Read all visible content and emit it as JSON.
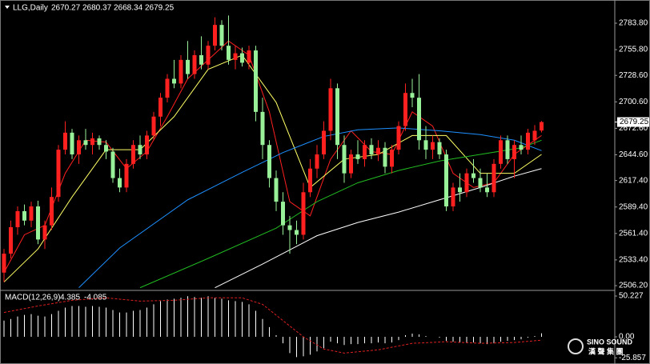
{
  "chart_data": [
    {
      "type": "candlestick",
      "title": "LLG,Daily",
      "open": [
        2520,
        2540,
        2568,
        2585,
        2575,
        2590,
        2555,
        2570,
        2600,
        2650,
        2668,
        2645,
        2660,
        2655,
        2662,
        2655,
        2648,
        2620,
        2610,
        2635,
        2655,
        2645,
        2665,
        2685,
        2705,
        2725,
        2720,
        2745,
        2730,
        2750,
        2740,
        2760,
        2782,
        2760,
        2745,
        2752,
        2742,
        2755,
        2690,
        2655,
        2620,
        2595,
        2570,
        2565,
        2560,
        2605,
        2630,
        2645,
        2670,
        2715,
        2655,
        2625,
        2645,
        2640,
        2655,
        2645,
        2652,
        2632,
        2650,
        2675,
        2710,
        2705,
        2660,
        2650,
        2658,
        2645,
        2590,
        2610,
        2605,
        2625,
        2620,
        2610,
        2605,
        2635,
        2660,
        2640,
        2655,
        2650,
        2660,
        2670.27
      ],
      "high": [
        2545,
        2575,
        2590,
        2592,
        2595,
        2596,
        2575,
        2610,
        2655,
        2680,
        2672,
        2665,
        2672,
        2668,
        2665,
        2660,
        2652,
        2630,
        2640,
        2660,
        2665,
        2670,
        2690,
        2710,
        2730,
        2745,
        2750,
        2765,
        2755,
        2770,
        2765,
        2790,
        2787,
        2792,
        2760,
        2758,
        2760,
        2760,
        2705,
        2660,
        2628,
        2605,
        2580,
        2575,
        2615,
        2640,
        2655,
        2680,
        2725,
        2720,
        2665,
        2650,
        2660,
        2660,
        2662,
        2660,
        2658,
        2655,
        2680,
        2720,
        2725,
        2730,
        2675,
        2665,
        2662,
        2650,
        2615,
        2625,
        2630,
        2640,
        2630,
        2625,
        2640,
        2665,
        2665,
        2660,
        2665,
        2672,
        2676,
        2680.37
      ],
      "low": [
        2510,
        2535,
        2560,
        2570,
        2568,
        2550,
        2545,
        2565,
        2595,
        2645,
        2640,
        2635,
        2650,
        2645,
        2650,
        2640,
        2615,
        2605,
        2605,
        2630,
        2640,
        2640,
        2660,
        2675,
        2700,
        2715,
        2715,
        2725,
        2725,
        2735,
        2735,
        2755,
        2755,
        2740,
        2735,
        2738,
        2735,
        2680,
        2640,
        2610,
        2585,
        2560,
        2540,
        2550,
        2555,
        2600,
        2620,
        2640,
        2660,
        2640,
        2615,
        2620,
        2635,
        2632,
        2640,
        2638,
        2625,
        2625,
        2645,
        2670,
        2695,
        2650,
        2640,
        2640,
        2640,
        2585,
        2585,
        2595,
        2600,
        2615,
        2605,
        2600,
        2600,
        2630,
        2635,
        2620,
        2645,
        2645,
        2655,
        2668.34
      ],
      "close": [
        2540,
        2568,
        2585,
        2575,
        2590,
        2555,
        2570,
        2600,
        2650,
        2668,
        2645,
        2660,
        2655,
        2662,
        2655,
        2648,
        2620,
        2610,
        2635,
        2655,
        2645,
        2665,
        2685,
        2705,
        2725,
        2720,
        2745,
        2730,
        2750,
        2740,
        2760,
        2782,
        2760,
        2745,
        2752,
        2742,
        2755,
        2690,
        2655,
        2620,
        2595,
        2570,
        2565,
        2560,
        2605,
        2630,
        2645,
        2670,
        2715,
        2655,
        2625,
        2645,
        2640,
        2655,
        2645,
        2652,
        2632,
        2650,
        2675,
        2710,
        2705,
        2660,
        2650,
        2658,
        2645,
        2590,
        2610,
        2605,
        2625,
        2620,
        2610,
        2605,
        2635,
        2660,
        2640,
        2655,
        2650,
        2668,
        2670,
        2679.25
      ],
      "up_color": "#ff2020",
      "down_color": "#98f098",
      "series": [
        {
          "color": "#ff2020",
          "x": [
            0,
            3,
            6,
            9,
            12,
            15,
            18,
            21,
            24,
            27,
            30,
            33,
            36,
            39,
            42,
            45,
            48,
            51,
            54,
            57,
            60,
            63,
            66,
            69,
            72,
            75,
            78,
            79
          ],
          "values": [
            2520,
            2560,
            2570,
            2625,
            2660,
            2658,
            2630,
            2648,
            2685,
            2725,
            2745,
            2765,
            2750,
            2690,
            2595,
            2580,
            2640,
            2670,
            2648,
            2645,
            2690,
            2675,
            2625,
            2610,
            2615,
            2645,
            2660,
            2665
          ]
        },
        {
          "color": "#ffff66",
          "x": [
            0,
            5,
            10,
            15,
            20,
            25,
            30,
            35,
            40,
            45,
            50,
            55,
            60,
            65,
            70,
            75,
            79
          ],
          "values": [
            2510,
            2545,
            2600,
            2650,
            2650,
            2685,
            2735,
            2750,
            2700,
            2610,
            2640,
            2645,
            2665,
            2665,
            2625,
            2625,
            2645
          ]
        },
        {
          "color": "#22bb22",
          "x": [
            20,
            30,
            40,
            46,
            52,
            58,
            64,
            70,
            76,
            79
          ],
          "values": [
            2504,
            2535,
            2567,
            2595,
            2615,
            2628,
            2638,
            2645,
            2652,
            2660
          ]
        },
        {
          "color": "#1e90ff",
          "x": [
            11,
            17,
            27,
            35,
            41,
            47,
            52,
            58,
            64,
            70,
            75,
            79
          ],
          "values": [
            2504,
            2546,
            2597,
            2626,
            2647,
            2664,
            2671,
            2673,
            2670,
            2666,
            2660,
            2649
          ]
        },
        {
          "color": "#ffffff",
          "x": [
            31,
            38,
            46,
            52,
            58,
            64,
            70,
            75,
            79
          ],
          "values": [
            2504,
            2529,
            2559,
            2573,
            2584,
            2597,
            2610,
            2622,
            2630
          ]
        }
      ],
      "ylim": [
        2502,
        2796.5
      ],
      "yticks": [
        {
          "value": 2783.8,
          "label": "2783.80"
        },
        {
          "value": 2755.8,
          "label": "2755.80"
        },
        {
          "value": 2728.6,
          "label": "2728.60"
        },
        {
          "value": 2700.6,
          "label": "2700.60"
        },
        {
          "value": 2672.6,
          "label": "2672.60"
        },
        {
          "value": 2644.6,
          "label": "2644.60"
        },
        {
          "value": 2617.4,
          "label": "2617.40"
        },
        {
          "value": 2589.4,
          "label": "2589.40"
        },
        {
          "value": 2561.4,
          "label": "2561.40"
        },
        {
          "value": 2533.4,
          "label": "2533.40"
        },
        {
          "value": 2506.2,
          "label": "2506.20"
        }
      ]
    },
    {
      "type": "macd",
      "title": "MACD(12,26,9)",
      "values": [
        20,
        22,
        25,
        27,
        28,
        26,
        25,
        28,
        32,
        36,
        38,
        38,
        37,
        38,
        37,
        36,
        33,
        30,
        30,
        32,
        33,
        36,
        40,
        44,
        46,
        47,
        48,
        50,
        49,
        48,
        50,
        48,
        47,
        45,
        44,
        43,
        40,
        32,
        22,
        12,
        2,
        -8,
        -20,
        -25,
        -24,
        -22,
        -18,
        -14,
        -6,
        -8,
        -10,
        -9,
        -9,
        -8,
        -8,
        -7,
        -8,
        -7,
        -4,
        2,
        4,
        3,
        1,
        0,
        -1,
        -5,
        -6,
        -7,
        -7,
        -7,
        -8,
        -9,
        -8,
        -6,
        -5,
        -4,
        -3,
        -1,
        1,
        4.385
      ],
      "color": "#ffffff",
      "series": [
        {
          "color": "#dd2020",
          "x": [
            0,
            5,
            10,
            15,
            20,
            25,
            30,
            35,
            38,
            41,
            44,
            47,
            50,
            55,
            60,
            65,
            70,
            75,
            79
          ],
          "values": [
            30,
            38,
            45,
            48,
            44,
            45,
            48,
            48,
            40,
            20,
            0,
            -15,
            -20,
            -16,
            -8,
            -6,
            -8,
            -7,
            -4.085
          ]
        }
      ],
      "ylim": [
        -30.5,
        55.2
      ],
      "yticks": [
        50.227,
        {
          "value": 0,
          "label": "0.00"
        },
        -25.857
      ]
    }
  ],
  "watermark": {
    "name": "SINO SOUND",
    "chinese": "漢 聲 集 團"
  }
}
